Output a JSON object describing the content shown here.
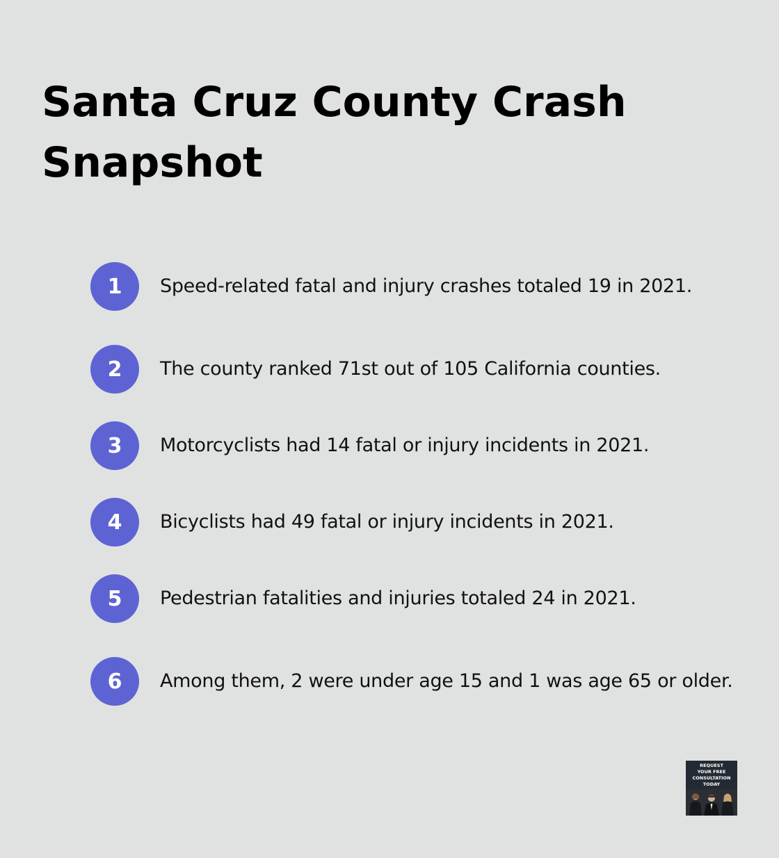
{
  "title": "Santa Cruz County Crash Snapshot",
  "accent_color": "#5e63d4",
  "background_color": "#e0e2e1",
  "items": [
    {
      "number": "1",
      "text": "Speed-related fatal and injury crashes totaled 19 in 2021."
    },
    {
      "number": "2",
      "text": "The county ranked 71st out of 105 California counties."
    },
    {
      "number": "3",
      "text": "Motorcyclists had 14 fatal or injury incidents in 2021."
    },
    {
      "number": "4",
      "text": "Bicyclists had 49 fatal or injury incidents in 2021."
    },
    {
      "number": "5",
      "text": "Pedestrian fatalities and injuries totaled 24 in 2021."
    },
    {
      "number": "6",
      "text": "Among them, 2 were under age 15 and 1 was age 65 or older."
    }
  ],
  "promo": {
    "line1": "REQUEST",
    "line2": "YOUR FREE",
    "line3": "CONSULTATION",
    "line4": "TODAY"
  }
}
